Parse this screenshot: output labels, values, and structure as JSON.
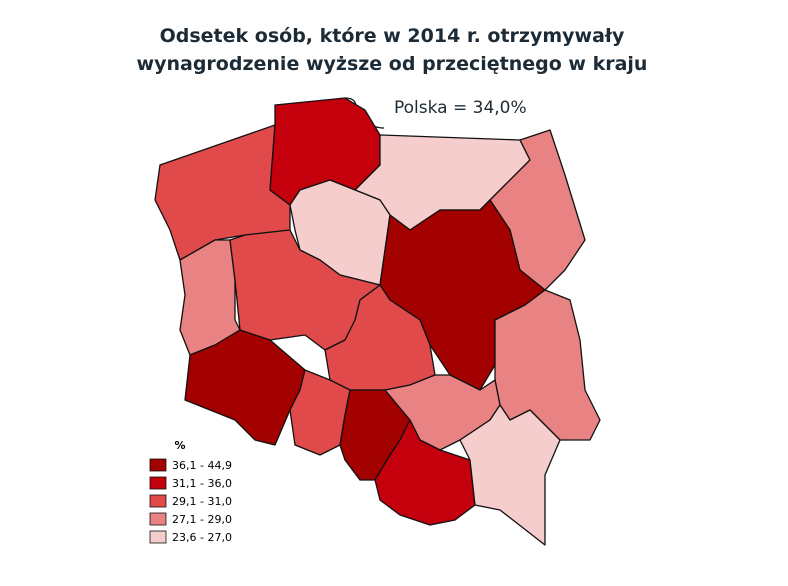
{
  "title": [
    "Odsetek osób, które w 2014 r. otrzymywały",
    "wynagrodzenie wyższe od przeciętnego w kraju"
  ],
  "annotation": "Polska = 34,0%",
  "legend": {
    "title": "%",
    "items": [
      {
        "label": "36,1 - 44,9",
        "color": "#a30000"
      },
      {
        "label": "31,1 - 36,0",
        "color": "#c4000c"
      },
      {
        "label": "29,1 - 31,0",
        "color": "#e04a4a"
      },
      {
        "label": "27,1 - 29,0",
        "color": "#e98282"
      },
      {
        "label": "23,6 - 27,0",
        "color": "#f5cdcd"
      }
    ]
  }
}
